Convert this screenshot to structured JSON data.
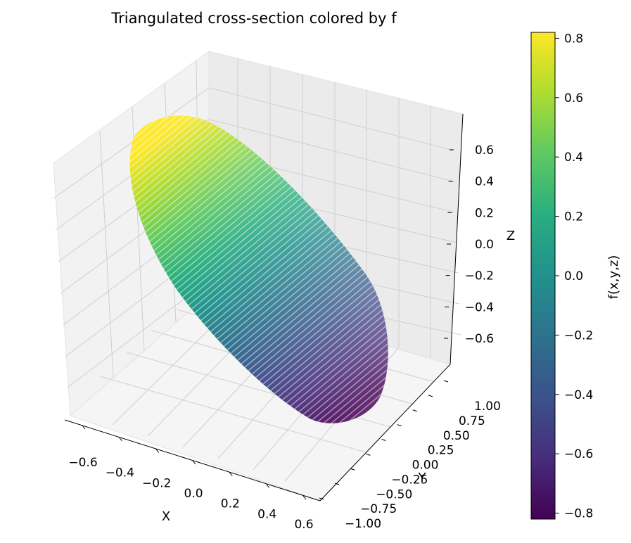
{
  "chart_data": {
    "type": "scatter",
    "projection": "3d",
    "title": "Triangulated cross-section colored by f",
    "xlabel": "X",
    "ylabel": "Y",
    "zlabel": "Z",
    "x_ticks": [
      "−0.6",
      "−0.4",
      "−0.2",
      "0.0",
      "0.2",
      "0.4",
      "0.6"
    ],
    "y_ticks": [
      "−1.00",
      "−0.75",
      "−0.50",
      "−0.25",
      "0.00",
      "0.25",
      "0.50",
      "0.75",
      "1.00"
    ],
    "z_ticks": [
      "−0.6",
      "−0.4",
      "−0.2",
      "0.0",
      "0.2",
      "0.4",
      "0.6"
    ],
    "xlim": [
      -0.7,
      0.7
    ],
    "ylim": [
      -1.05,
      1.05
    ],
    "zlim": [
      -0.75,
      0.75
    ],
    "grid": true,
    "colormap": "viridis",
    "colorbar": {
      "label": "f(x,y,z)",
      "range": [
        -0.82,
        0.82
      ],
      "ticks": [
        "−0.8",
        "−0.6",
        "−0.4",
        "−0.2",
        "0.0",
        "0.2",
        "0.4",
        "0.6",
        "0.8"
      ]
    },
    "surface": {
      "description_of_data": "points on the plane cross-section of the unit ball",
      "top_corner_value": 0.82,
      "bottom_corner_value": -0.82
    }
  },
  "colors": {
    "pane": "#f2f2f2",
    "pane_dark": "#e6e6e6",
    "grid": "#c8c8c8",
    "stripe": "#ffffff"
  }
}
